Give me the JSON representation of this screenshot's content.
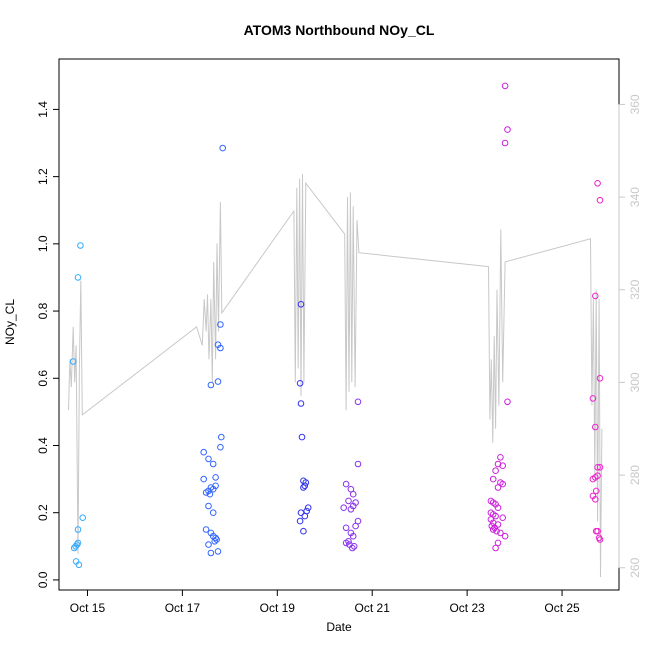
{
  "chart_data": {
    "type": "scatter",
    "title": "ATOM3 Northbound NOy_CL",
    "xlabel": "Date",
    "ylabel": "NOy_CL",
    "x_ticks": [
      "Oct 15",
      "Oct 17",
      "Oct 19",
      "Oct 21",
      "Oct 23",
      "Oct 25"
    ],
    "y_ticks": [
      "0.0",
      "0.2",
      "0.4",
      "0.6",
      "0.8",
      "1.0",
      "1.2",
      "1.4"
    ],
    "y_right_ticks": [
      "260",
      "280",
      "300",
      "320",
      "340",
      "360"
    ],
    "xlim": [
      14.4,
      26.2
    ],
    "ylim": [
      -0.03,
      1.55
    ],
    "y_right_lim": [
      255.2,
      369.8
    ],
    "colors": {
      "axis": "#000000",
      "line": "#c8c8c8",
      "right_axis": "#c8c8c8"
    },
    "point_series": [
      {
        "color": "#33aaff",
        "points": [
          [
            14.7,
            0.65
          ],
          [
            14.8,
            0.9
          ],
          [
            14.85,
            0.995
          ],
          [
            14.9,
            0.185
          ],
          [
            14.8,
            0.15
          ],
          [
            14.78,
            0.105
          ],
          [
            14.75,
            0.1
          ],
          [
            14.72,
            0.095
          ],
          [
            14.8,
            0.11
          ],
          [
            14.76,
            0.055
          ],
          [
            14.82,
            0.045
          ]
        ]
      },
      {
        "color": "#3366ff",
        "points": [
          [
            17.85,
            1.285
          ],
          [
            17.8,
            0.76
          ],
          [
            17.75,
            0.7
          ],
          [
            17.8,
            0.69
          ],
          [
            17.75,
            0.59
          ],
          [
            17.6,
            0.58
          ],
          [
            17.82,
            0.425
          ],
          [
            17.8,
            0.395
          ],
          [
            17.45,
            0.38
          ],
          [
            17.55,
            0.36
          ],
          [
            17.65,
            0.345
          ],
          [
            17.7,
            0.305
          ],
          [
            17.45,
            0.3
          ],
          [
            17.7,
            0.28
          ],
          [
            17.6,
            0.275
          ],
          [
            17.65,
            0.27
          ],
          [
            17.55,
            0.265
          ],
          [
            17.5,
            0.26
          ],
          [
            17.58,
            0.255
          ],
          [
            17.55,
            0.22
          ],
          [
            17.65,
            0.2
          ],
          [
            17.5,
            0.15
          ],
          [
            17.6,
            0.14
          ],
          [
            17.65,
            0.13
          ],
          [
            17.7,
            0.125
          ],
          [
            17.72,
            0.12
          ],
          [
            17.68,
            0.115
          ],
          [
            17.55,
            0.105
          ],
          [
            17.75,
            0.085
          ],
          [
            17.6,
            0.08
          ]
        ]
      },
      {
        "color": "#3333ee",
        "points": [
          [
            19.5,
            0.82
          ],
          [
            19.48,
            0.585
          ],
          [
            19.5,
            0.525
          ],
          [
            19.52,
            0.425
          ],
          [
            19.55,
            0.295
          ],
          [
            19.6,
            0.29
          ],
          [
            19.58,
            0.28
          ],
          [
            19.55,
            0.275
          ],
          [
            19.65,
            0.215
          ],
          [
            19.62,
            0.205
          ],
          [
            19.5,
            0.2
          ],
          [
            19.58,
            0.19
          ],
          [
            19.48,
            0.175
          ],
          [
            19.55,
            0.145
          ]
        ]
      },
      {
        "color": "#8833ee",
        "points": [
          [
            20.7,
            0.53
          ],
          [
            20.7,
            0.345
          ],
          [
            20.45,
            0.285
          ],
          [
            20.55,
            0.27
          ],
          [
            20.6,
            0.255
          ],
          [
            20.5,
            0.235
          ],
          [
            20.65,
            0.23
          ],
          [
            20.6,
            0.22
          ],
          [
            20.4,
            0.215
          ],
          [
            20.55,
            0.21
          ],
          [
            20.7,
            0.175
          ],
          [
            20.65,
            0.16
          ],
          [
            20.45,
            0.155
          ],
          [
            20.55,
            0.14
          ],
          [
            20.6,
            0.13
          ],
          [
            20.5,
            0.115
          ],
          [
            20.45,
            0.11
          ],
          [
            20.52,
            0.105
          ],
          [
            20.62,
            0.1
          ],
          [
            20.58,
            0.095
          ]
        ]
      },
      {
        "color": "#cc22dd",
        "points": [
          [
            23.8,
            1.47
          ],
          [
            23.85,
            1.34
          ],
          [
            23.8,
            1.3
          ],
          [
            23.85,
            0.53
          ],
          [
            23.7,
            0.365
          ],
          [
            23.65,
            0.345
          ],
          [
            23.75,
            0.34
          ],
          [
            23.6,
            0.325
          ],
          [
            23.55,
            0.3
          ],
          [
            23.7,
            0.29
          ],
          [
            23.75,
            0.285
          ],
          [
            23.65,
            0.275
          ],
          [
            23.5,
            0.235
          ],
          [
            23.55,
            0.23
          ],
          [
            23.6,
            0.225
          ],
          [
            23.65,
            0.215
          ],
          [
            23.5,
            0.2
          ],
          [
            23.55,
            0.195
          ],
          [
            23.6,
            0.19
          ],
          [
            23.75,
            0.185
          ],
          [
            23.5,
            0.18
          ],
          [
            23.55,
            0.17
          ],
          [
            23.65,
            0.165
          ],
          [
            23.52,
            0.16
          ],
          [
            23.58,
            0.155
          ],
          [
            23.55,
            0.15
          ],
          [
            23.62,
            0.145
          ],
          [
            23.7,
            0.14
          ],
          [
            23.8,
            0.13
          ],
          [
            23.65,
            0.11
          ],
          [
            23.6,
            0.095
          ]
        ]
      },
      {
        "color": "#ee22cc",
        "points": [
          [
            25.75,
            1.18
          ],
          [
            25.8,
            1.13
          ],
          [
            25.7,
            0.845
          ],
          [
            25.8,
            0.6
          ],
          [
            25.65,
            0.54
          ],
          [
            25.7,
            0.455
          ],
          [
            25.75,
            0.335
          ],
          [
            25.8,
            0.335
          ],
          [
            25.7,
            0.305
          ],
          [
            25.75,
            0.31
          ],
          [
            25.65,
            0.3
          ],
          [
            25.72,
            0.265
          ],
          [
            25.65,
            0.25
          ],
          [
            25.7,
            0.24
          ],
          [
            25.72,
            0.145
          ],
          [
            25.75,
            0.145
          ],
          [
            25.78,
            0.125
          ],
          [
            25.8,
            0.12
          ]
        ]
      }
    ],
    "altitude_line": [
      [
        14.6,
        294
      ],
      [
        14.63,
        305
      ],
      [
        14.66,
        299
      ],
      [
        14.7,
        312
      ],
      [
        14.73,
        300
      ],
      [
        14.76,
        308
      ],
      [
        14.8,
        263
      ],
      [
        14.83,
        303
      ],
      [
        14.86,
        322
      ],
      [
        14.89,
        293
      ],
      [
        17.3,
        312
      ],
      [
        17.42,
        308
      ],
      [
        17.46,
        318
      ],
      [
        17.5,
        311
      ],
      [
        17.53,
        319
      ],
      [
        17.56,
        305
      ],
      [
        17.6,
        318
      ],
      [
        17.63,
        300
      ],
      [
        17.66,
        326
      ],
      [
        17.7,
        305
      ],
      [
        17.73,
        330
      ],
      [
        17.76,
        311
      ],
      [
        17.8,
        339
      ],
      [
        17.83,
        315
      ],
      [
        19.35,
        337
      ],
      [
        19.38,
        300
      ],
      [
        19.41,
        342
      ],
      [
        19.44,
        303
      ],
      [
        19.47,
        344
      ],
      [
        19.5,
        297
      ],
      [
        19.53,
        345
      ],
      [
        19.56,
        300
      ],
      [
        19.6,
        343
      ],
      [
        20.42,
        332
      ],
      [
        20.45,
        294
      ],
      [
        20.48,
        340
      ],
      [
        20.51,
        298
      ],
      [
        20.54,
        341
      ],
      [
        20.57,
        300
      ],
      [
        20.6,
        338
      ],
      [
        20.64,
        299
      ],
      [
        20.68,
        335
      ],
      [
        20.72,
        328
      ],
      [
        23.45,
        325
      ],
      [
        23.48,
        292
      ],
      [
        23.51,
        305
      ],
      [
        23.54,
        287
      ],
      [
        23.57,
        310
      ],
      [
        23.6,
        290
      ],
      [
        23.63,
        320
      ],
      [
        23.67,
        295
      ],
      [
        23.71,
        333
      ],
      [
        23.75,
        300
      ],
      [
        23.8,
        326
      ],
      [
        25.6,
        331
      ],
      [
        25.63,
        295
      ],
      [
        25.66,
        318
      ],
      [
        25.69,
        280
      ],
      [
        25.72,
        320
      ],
      [
        25.75,
        270
      ],
      [
        25.78,
        318
      ],
      [
        25.81,
        258
      ],
      [
        25.84,
        290
      ]
    ]
  }
}
